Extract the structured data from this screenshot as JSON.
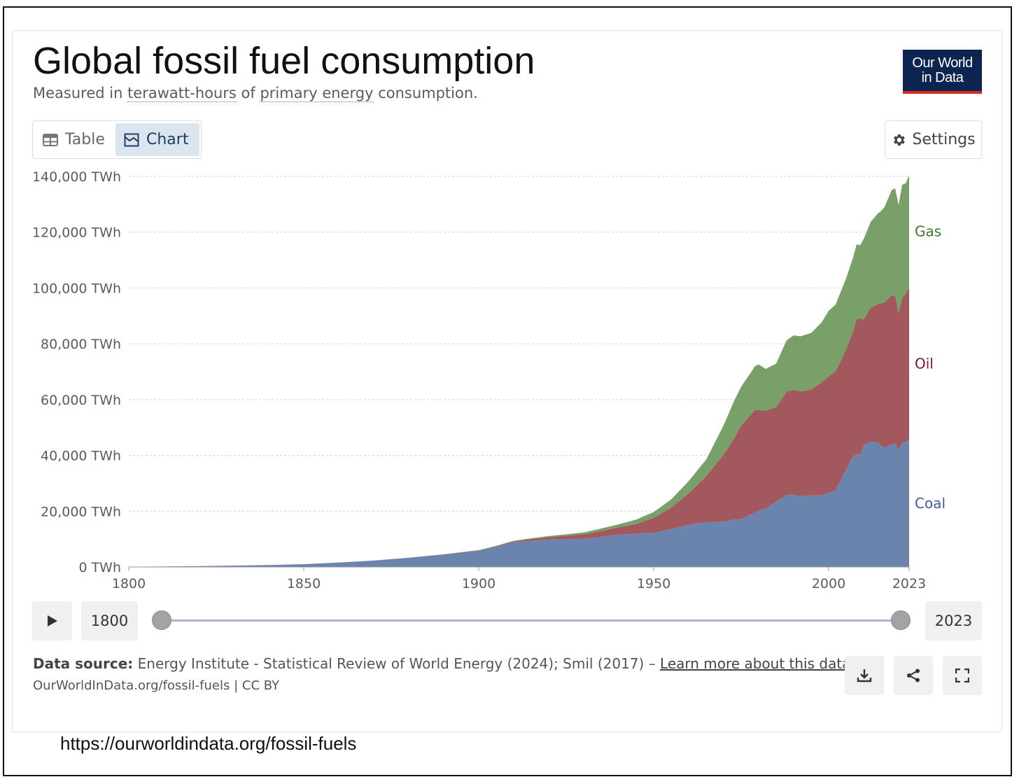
{
  "header": {
    "title": "Global fossil fuel consumption",
    "subtitle_prefix": "Measured in ",
    "subtitle_link1": "terawatt-hours",
    "subtitle_mid": " of ",
    "subtitle_link2": "primary energy",
    "subtitle_suffix": " consumption.",
    "logo_line1": "Our World",
    "logo_line2": "in Data"
  },
  "toolbar": {
    "tab_table": "Table",
    "tab_chart": "Chart",
    "settings_label": "Settings"
  },
  "timeline": {
    "start_label": "1800",
    "end_label": "2023",
    "start_fraction": 0,
    "end_fraction": 1
  },
  "footer": {
    "source_bold": "Data source:",
    "source_text": " Energy Institute - Statistical Review of World Energy (2024); Smil (2017) – ",
    "source_link": "Learn more about this data",
    "reference": "OurWorldInData.org/fossil-fuels | CC BY"
  },
  "page_url": "https://ourworldindata.org/fossil-fuels",
  "colors": {
    "coal": "#6b84ad",
    "oil": "#a2585d",
    "gas": "#78a068",
    "coal_label": "#3e5d9a",
    "oil_label": "#7a1b25",
    "gas_label": "#3f7a33"
  },
  "chart_data": {
    "type": "area",
    "stacked": true,
    "title": "Global fossil fuel consumption",
    "ylabel": "TWh",
    "xlim": [
      1800,
      2023
    ],
    "ylim": [
      0,
      140000
    ],
    "y_ticks": [
      0,
      20000,
      40000,
      60000,
      80000,
      100000,
      120000,
      140000
    ],
    "y_tick_labels": [
      "0 TWh",
      "20,000 TWh",
      "40,000 TWh",
      "60,000 TWh",
      "80,000 TWh",
      "100,000 TWh",
      "120,000 TWh",
      "140,000 TWh"
    ],
    "x_ticks": [
      1800,
      1850,
      1900,
      1950,
      2000,
      2023
    ],
    "x_tick_labels": [
      "1800",
      "1850",
      "1900",
      "1950",
      "2000",
      "2023"
    ],
    "grid": true,
    "legend_position": "right-inline",
    "x": [
      1800,
      1810,
      1820,
      1830,
      1840,
      1850,
      1860,
      1870,
      1880,
      1890,
      1900,
      1905,
      1910,
      1915,
      1920,
      1925,
      1930,
      1935,
      1940,
      1945,
      1950,
      1955,
      1960,
      1965,
      1970,
      1973,
      1975,
      1979,
      1980,
      1982,
      1985,
      1988,
      1990,
      1992,
      1995,
      1998,
      2000,
      2002,
      2005,
      2007,
      2008,
      2009,
      2010,
      2012,
      2014,
      2015,
      2016,
      2018,
      2019,
      2020,
      2021,
      2022,
      2023
    ],
    "series": [
      {
        "name": "Coal",
        "values": [
          100,
          200,
          300,
          500,
          700,
          1000,
          1600,
          2300,
          3300,
          4500,
          5900,
          7300,
          8900,
          9400,
          9800,
          10000,
          10100,
          10800,
          11600,
          11900,
          12300,
          13600,
          15200,
          16000,
          16300,
          17000,
          17200,
          19500,
          20300,
          21000,
          23400,
          25800,
          25900,
          25400,
          25700,
          25700,
          26600,
          27600,
          35000,
          39700,
          40400,
          40100,
          43600,
          44900,
          44700,
          43500,
          42800,
          43900,
          44200,
          42200,
          44400,
          44900,
          45600
        ]
      },
      {
        "name": "Oil",
        "values": [
          0,
          0,
          0,
          0,
          0,
          0,
          0,
          10,
          20,
          50,
          100,
          200,
          300,
          600,
          900,
          1200,
          1600,
          2100,
          2600,
          3500,
          5300,
          7700,
          11200,
          16500,
          24000,
          29000,
          33500,
          36800,
          36000,
          35000,
          34000,
          37000,
          37700,
          37500,
          38000,
          40500,
          41700,
          42500,
          43000,
          44800,
          48500,
          49000,
          45000,
          48000,
          49500,
          51000,
          52000,
          53500,
          53000,
          48700,
          52000,
          53000,
          54600
        ]
      },
      {
        "name": "Gas",
        "values": [
          0,
          0,
          0,
          0,
          0,
          0,
          0,
          0,
          0,
          10,
          50,
          100,
          200,
          300,
          400,
          500,
          700,
          900,
          1100,
          1600,
          2100,
          2900,
          4400,
          6000,
          10500,
          13600,
          13900,
          15700,
          16300,
          15000,
          15500,
          18500,
          19400,
          19800,
          20200,
          21500,
          23500,
          24000,
          25500,
          26500,
          26800,
          26200,
          28900,
          30800,
          32400,
          33100,
          34300,
          37700,
          38500,
          38800,
          40600,
          39600,
          40100
        ]
      }
    ]
  }
}
